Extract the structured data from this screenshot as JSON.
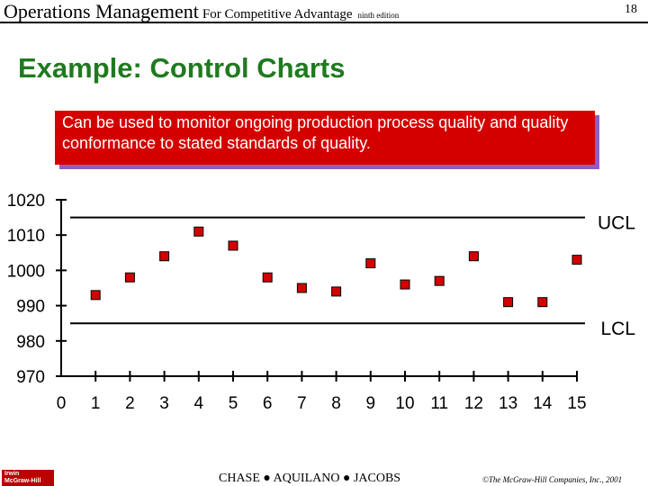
{
  "header": {
    "title": "Operations Management",
    "subtitle": "For Competitive Advantage",
    "edition": "ninth edition",
    "page_number": "18"
  },
  "slide": {
    "title": "Example: Control Charts",
    "callout": "Can be used to monitor ongoing production process quality and quality conformance to stated standards of quality."
  },
  "chart_data": {
    "type": "scatter",
    "x": [
      1,
      2,
      3,
      4,
      5,
      6,
      7,
      8,
      9,
      10,
      11,
      12,
      13,
      14,
      15
    ],
    "values": [
      993,
      998,
      1004,
      1011,
      1007,
      998,
      995,
      994,
      1002,
      996,
      997,
      1004,
      991,
      991,
      1003
    ],
    "x_ticks": [
      "0",
      "1",
      "2",
      "3",
      "4",
      "5",
      "6",
      "7",
      "8",
      "9",
      "10",
      "11",
      "12",
      "13",
      "14",
      "15"
    ],
    "y_ticks": [
      "970",
      "980",
      "990",
      "1000",
      "1010",
      "1020"
    ],
    "ylim": [
      970,
      1020
    ],
    "xlim": [
      0,
      15
    ],
    "ucl": {
      "label": "UCL",
      "value": 1015
    },
    "lcl": {
      "label": "LCL",
      "value": 985
    },
    "grid": false,
    "marker_color": "#d40000"
  },
  "footer": {
    "authors": [
      "CHASE",
      "AQUILANO",
      "JACOBS"
    ],
    "copyright": "©The McGraw-Hill Companies, Inc., 2001",
    "logo_text": [
      "Irwin",
      "McGraw-Hill"
    ]
  }
}
